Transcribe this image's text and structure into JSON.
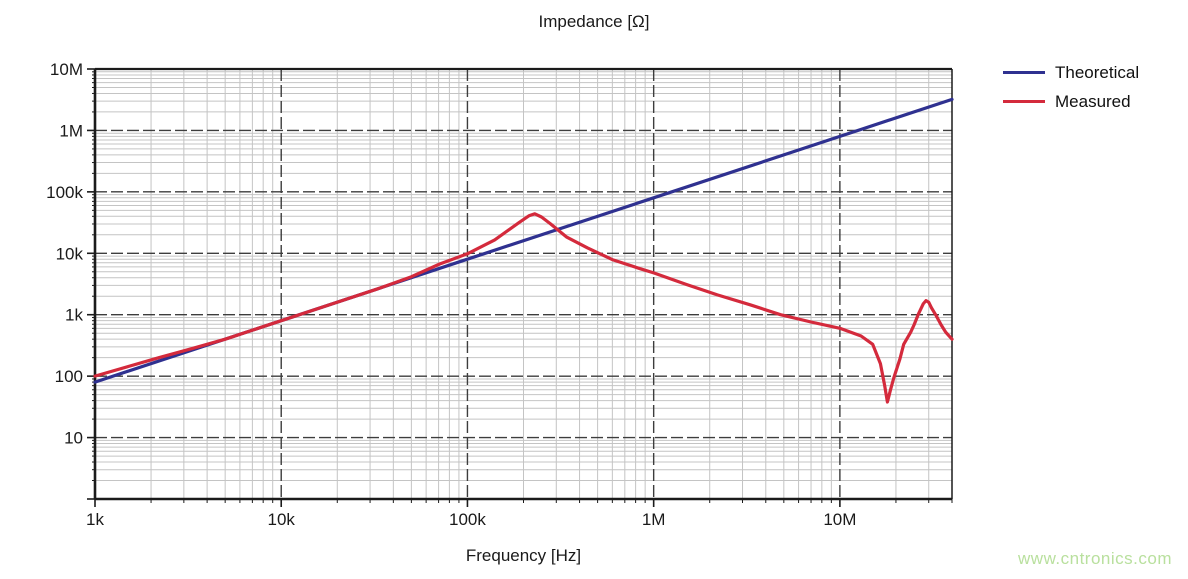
{
  "page": {
    "watermark_text": "www.cntronics.com",
    "watermark_color": "#b9e09e"
  },
  "chart_data": {
    "type": "line",
    "title": "Impedance [Ω]",
    "xlabel": "Frequency [Hz]",
    "ylabel": "",
    "x_scale": "log",
    "y_scale": "log",
    "xlim": [
      1000,
      40000000
    ],
    "ylim": [
      1,
      10000000
    ],
    "grid": true,
    "legend_position": "top-right-outside",
    "colors": {
      "frame": "#1b1b1b",
      "major_grid": "#3d3d3d",
      "minor_grid": "#c4c4c4",
      "tick": "#1b1b1b",
      "label": "#1a1a1a"
    },
    "x_ticks": [
      {
        "v": 1000,
        "label": "1k"
      },
      {
        "v": 10000,
        "label": "10k"
      },
      {
        "v": 100000,
        "label": "100k"
      },
      {
        "v": 1000000,
        "label": "1M"
      },
      {
        "v": 10000000,
        "label": "10M"
      }
    ],
    "y_ticks": [
      {
        "v": 10,
        "label": "10"
      },
      {
        "v": 100,
        "label": "100"
      },
      {
        "v": 1000,
        "label": "1k"
      },
      {
        "v": 10000,
        "label": "10k"
      },
      {
        "v": 100000,
        "label": "100k"
      },
      {
        "v": 1000000,
        "label": "1M"
      },
      {
        "v": 10000000,
        "label": "10M"
      }
    ],
    "series": [
      {
        "name": "Theoretical",
        "color": "#2f3190",
        "width": 3.2,
        "points": [
          [
            1000,
            80
          ],
          [
            10000,
            800
          ],
          [
            100000,
            8000
          ],
          [
            1000000,
            80000
          ],
          [
            10000000,
            800000
          ],
          [
            40000000,
            3200000
          ]
        ]
      },
      {
        "name": "Measured",
        "color": "#d42a3c",
        "width": 3.2,
        "points": [
          [
            1000,
            100
          ],
          [
            1500,
            143
          ],
          [
            2200,
            200
          ],
          [
            3300,
            280
          ],
          [
            5000,
            400
          ],
          [
            7500,
            600
          ],
          [
            10000,
            800
          ],
          [
            15000,
            1200
          ],
          [
            22000,
            1760
          ],
          [
            33000,
            2640
          ],
          [
            50000,
            4150
          ],
          [
            71000,
            6700
          ],
          [
            100000,
            9800
          ],
          [
            140000,
            16500
          ],
          [
            190000,
            32000
          ],
          [
            215000,
            41000
          ],
          [
            230000,
            44000
          ],
          [
            250000,
            39000
          ],
          [
            280000,
            30000
          ],
          [
            340000,
            18500
          ],
          [
            440000,
            12300
          ],
          [
            600000,
            7900
          ],
          [
            850000,
            5600
          ],
          [
            1000000,
            4800
          ],
          [
            1500000,
            3100
          ],
          [
            2200000,
            2100
          ],
          [
            3300000,
            1450
          ],
          [
            4800000,
            1000
          ],
          [
            7000000,
            760
          ],
          [
            10000000,
            600
          ],
          [
            13000000,
            450
          ],
          [
            15000000,
            330
          ],
          [
            16500000,
            160
          ],
          [
            17400000,
            70
          ],
          [
            18000000,
            38
          ],
          [
            18700000,
            60
          ],
          [
            19500000,
            95
          ],
          [
            21000000,
            190
          ],
          [
            22000000,
            330
          ],
          [
            24000000,
            520
          ],
          [
            25000000,
            680
          ],
          [
            26500000,
            1050
          ],
          [
            28000000,
            1500
          ],
          [
            29000000,
            1700
          ],
          [
            30000000,
            1600
          ],
          [
            31000000,
            1300
          ],
          [
            33000000,
            950
          ],
          [
            35000000,
            680
          ],
          [
            37000000,
            520
          ],
          [
            40000000,
            400
          ]
        ]
      }
    ]
  }
}
